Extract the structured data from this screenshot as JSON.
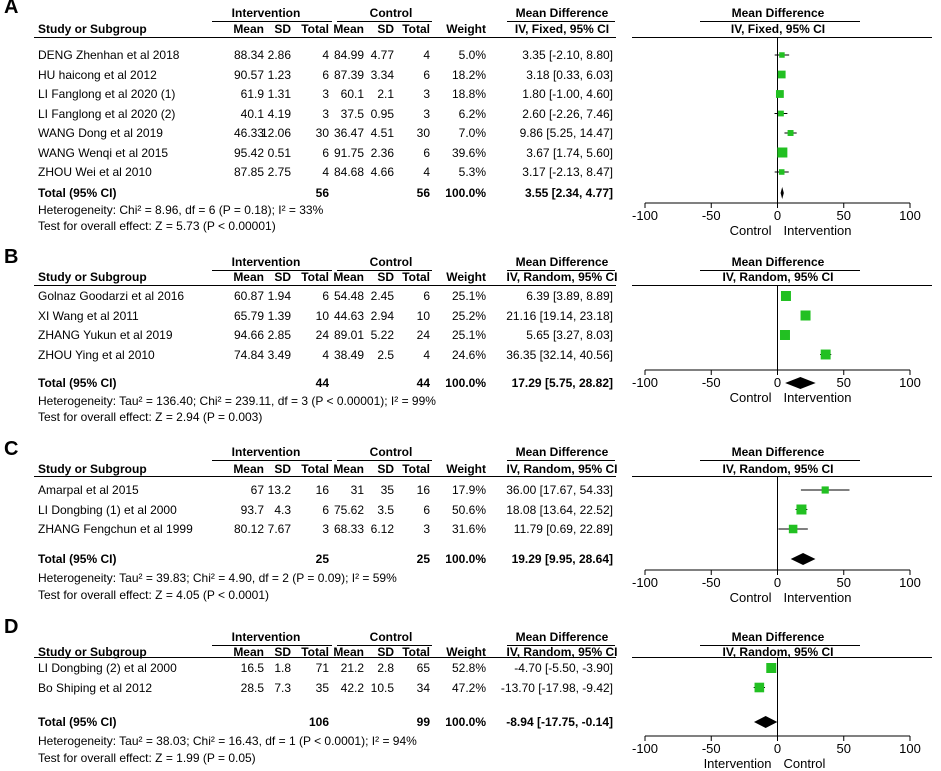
{
  "panels": [
    {
      "letter": "A",
      "model": "Fixed",
      "group_headers": {
        "intervention": "Intervention",
        "control": "Control",
        "md": "Mean Difference",
        "md_plot": "Mean Difference"
      },
      "col_headers": {
        "study": "Study or Subgroup",
        "mean": "Mean",
        "sd": "SD",
        "total": "Total",
        "mean2": "Mean",
        "sd2": "SD",
        "total2": "Total",
        "weight": "Weight",
        "ci": "IV, Fixed, 95% CI",
        "ci_plot": "IV, Fixed, 95% CI"
      },
      "studies": [
        {
          "name": "DENG Zhenhan et al 2018",
          "i_mean": "88.34",
          "i_sd": "2.86",
          "i_n": "4",
          "c_mean": "84.99",
          "c_sd": "4.77",
          "c_n": "4",
          "weight": "5.0%",
          "ci_text": "3.35 [-2.10, 8.80]",
          "md": 3.35,
          "lo": -2.1,
          "hi": 8.8,
          "w": 5.0
        },
        {
          "name": "HU haicong et al 2012",
          "i_mean": "90.57",
          "i_sd": "1.23",
          "i_n": "6",
          "c_mean": "87.39",
          "c_sd": "3.34",
          "c_n": "6",
          "weight": "18.2%",
          "ci_text": "3.18 [0.33, 6.03]",
          "md": 3.18,
          "lo": 0.33,
          "hi": 6.03,
          "w": 18.2
        },
        {
          "name": "LI Fanglong et al 2020 (1)",
          "i_mean": "61.9",
          "i_sd": "1.31",
          "i_n": "3",
          "c_mean": "60.1",
          "c_sd": "2.1",
          "c_n": "3",
          "weight": "18.8%",
          "ci_text": "1.80 [-1.00, 4.60]",
          "md": 1.8,
          "lo": -1.0,
          "hi": 4.6,
          "w": 18.8
        },
        {
          "name": "LI Fanglong et al 2020 (2)",
          "i_mean": "40.1",
          "i_sd": "4.19",
          "i_n": "3",
          "c_mean": "37.5",
          "c_sd": "0.95",
          "c_n": "3",
          "weight": "6.2%",
          "ci_text": "2.60 [-2.26, 7.46]",
          "md": 2.6,
          "lo": -2.26,
          "hi": 7.46,
          "w": 6.2
        },
        {
          "name": "WANG Dong et al 2019",
          "i_mean": "46.33",
          "i_sd": "12.06",
          "i_n": "30",
          "c_mean": "36.47",
          "c_sd": "4.51",
          "c_n": "30",
          "weight": "7.0%",
          "ci_text": "9.86 [5.25, 14.47]",
          "md": 9.86,
          "lo": 5.25,
          "hi": 14.47,
          "w": 7.0
        },
        {
          "name": "WANG Wenqi et al 2015",
          "i_mean": "95.42",
          "i_sd": "0.51",
          "i_n": "6",
          "c_mean": "91.75",
          "c_sd": "2.36",
          "c_n": "6",
          "weight": "39.6%",
          "ci_text": "3.67 [1.74, 5.60]",
          "md": 3.67,
          "lo": 1.74,
          "hi": 5.6,
          "w": 39.6
        },
        {
          "name": "ZHOU Wei et al 2010",
          "i_mean": "87.85",
          "i_sd": "2.75",
          "i_n": "4",
          "c_mean": "84.68",
          "c_sd": "4.66",
          "c_n": "4",
          "weight": "5.3%",
          "ci_text": "3.17 [-2.13, 8.47]",
          "md": 3.17,
          "lo": -2.13,
          "hi": 8.47,
          "w": 5.3
        }
      ],
      "total": {
        "label": "Total (95% CI)",
        "i_n": "56",
        "c_n": "56",
        "weight": "100.0%",
        "ci_text": "3.55 [2.34, 4.77]",
        "md": 3.55,
        "lo": 2.34,
        "hi": 4.77
      },
      "heterogeneity": "Heterogeneity: Chi² = 8.96, df = 6 (P = 0.18); I² = 33%",
      "overall": "Test for overall effect: Z = 5.73 (P < 0.00001)",
      "axis": {
        "ticks": [
          -100,
          -50,
          0,
          50,
          100
        ],
        "tick_labels": [
          "-100",
          "-50",
          "0",
          "50",
          "100"
        ],
        "left_label": "Control",
        "right_label": "Intervention"
      }
    },
    {
      "letter": "B",
      "model": "Random",
      "group_headers": {
        "intervention": "Intervention",
        "control": "Control",
        "md": "Mean Difference",
        "md_plot": "Mean Difference"
      },
      "col_headers": {
        "study": "Study or Subgroup",
        "mean": "Mean",
        "sd": "SD",
        "total": "Total",
        "mean2": "Mean",
        "sd2": "SD",
        "total2": "Total",
        "weight": "Weight",
        "ci": "IV, Random, 95% CI",
        "ci_plot": "IV, Random, 95% CI"
      },
      "studies": [
        {
          "name": "Golnaz Goodarzi et al 2016",
          "i_mean": "60.87",
          "i_sd": "1.94",
          "i_n": "6",
          "c_mean": "54.48",
          "c_sd": "2.45",
          "c_n": "6",
          "weight": "25.1%",
          "ci_text": "6.39 [3.89, 8.89]",
          "md": 6.39,
          "lo": 3.89,
          "hi": 8.89,
          "w": 25.1
        },
        {
          "name": "XI Wang et al 2011",
          "i_mean": "65.79",
          "i_sd": "1.39",
          "i_n": "10",
          "c_mean": "44.63",
          "c_sd": "2.94",
          "c_n": "10",
          "weight": "25.2%",
          "ci_text": "21.16 [19.14, 23.18]",
          "md": 21.16,
          "lo": 19.14,
          "hi": 23.18,
          "w": 25.2
        },
        {
          "name": "ZHANG Yukun et al 2019",
          "i_mean": "94.66",
          "i_sd": "2.85",
          "i_n": "24",
          "c_mean": "89.01",
          "c_sd": "5.22",
          "c_n": "24",
          "weight": "25.1%",
          "ci_text": "5.65 [3.27, 8.03]",
          "md": 5.65,
          "lo": 3.27,
          "hi": 8.03,
          "w": 25.1
        },
        {
          "name": "ZHOU Ying et al 2010",
          "i_mean": "74.84",
          "i_sd": "3.49",
          "i_n": "4",
          "c_mean": "38.49",
          "c_sd": "2.5",
          "c_n": "4",
          "weight": "24.6%",
          "ci_text": "36.35 [32.14, 40.56]",
          "md": 36.35,
          "lo": 32.14,
          "hi": 40.56,
          "w": 24.6
        }
      ],
      "total": {
        "label": "Total (95% CI)",
        "i_n": "44",
        "c_n": "44",
        "weight": "100.0%",
        "ci_text": "17.29 [5.75, 28.82]",
        "md": 17.29,
        "lo": 5.75,
        "hi": 28.82
      },
      "heterogeneity": "Heterogeneity: Tau² = 136.40; Chi² = 239.11, df = 3 (P < 0.00001); I² = 99%",
      "overall": "Test for overall effect: Z = 2.94 (P = 0.003)",
      "axis": {
        "ticks": [
          -100,
          -50,
          0,
          50,
          100
        ],
        "tick_labels": [
          "-100",
          "-50",
          "0",
          "50",
          "100"
        ],
        "left_label": "Control",
        "right_label": "Intervention"
      }
    },
    {
      "letter": "C",
      "model": "Random",
      "group_headers": {
        "intervention": "Intervention",
        "control": "Control",
        "md": "Mean Difference",
        "md_plot": "Mean Difference"
      },
      "col_headers": {
        "study": "Study or Subgroup",
        "mean": "Mean",
        "sd": "SD",
        "total": "Total",
        "mean2": "Mean",
        "sd2": "SD",
        "total2": "Total",
        "weight": "Weight",
        "ci": "IV, Random, 95% CI",
        "ci_plot": "IV, Random, 95% CI"
      },
      "studies": [
        {
          "name": "Amarpal et al 2015",
          "i_mean": "67",
          "i_sd": "13.2",
          "i_n": "16",
          "c_mean": "31",
          "c_sd": "35",
          "c_n": "16",
          "weight": "17.9%",
          "ci_text": "36.00 [17.67, 54.33]",
          "md": 36.0,
          "lo": 17.67,
          "hi": 54.33,
          "w": 17.9
        },
        {
          "name": "LI Dongbing (1) et al 2000",
          "i_mean": "93.7",
          "i_sd": "4.3",
          "i_n": "6",
          "c_mean": "75.62",
          "c_sd": "3.5",
          "c_n": "6",
          "weight": "50.6%",
          "ci_text": "18.08 [13.64, 22.52]",
          "md": 18.08,
          "lo": 13.64,
          "hi": 22.52,
          "w": 50.6
        },
        {
          "name": "ZHANG Fengchun et al 1999",
          "i_mean": "80.12",
          "i_sd": "7.67",
          "i_n": "3",
          "c_mean": "68.33",
          "c_sd": "6.12",
          "c_n": "3",
          "weight": "31.6%",
          "ci_text": "11.79 [0.69, 22.89]",
          "md": 11.79,
          "lo": 0.69,
          "hi": 22.89,
          "w": 31.6
        }
      ],
      "total": {
        "label": "Total (95% CI)",
        "i_n": "25",
        "c_n": "25",
        "weight": "100.0%",
        "ci_text": "19.29 [9.95, 28.64]",
        "md": 19.29,
        "lo": 9.95,
        "hi": 28.64
      },
      "heterogeneity": "Heterogeneity: Tau² = 39.83; Chi² = 4.90, df = 2 (P = 0.09); I² = 59%",
      "overall": "Test for overall effect: Z = 4.05 (P < 0.0001)",
      "axis": {
        "ticks": [
          -100,
          -50,
          0,
          50,
          100
        ],
        "tick_labels": [
          "-100",
          "-50",
          "0",
          "50",
          "100"
        ],
        "left_label": "Control",
        "right_label": "Intervention"
      }
    },
    {
      "letter": "D",
      "model": "Random",
      "group_headers": {
        "intervention": "Intervention",
        "control": "Control",
        "md": "Mean Difference",
        "md_plot": "Mean Difference"
      },
      "col_headers": {
        "study": "Study or Subgroup",
        "mean": "Mean",
        "sd": "SD",
        "total": "Total",
        "mean2": "Mean",
        "sd2": "SD",
        "total2": "Total",
        "weight": "Weight",
        "ci": "IV, Random, 95% CI",
        "ci_plot": "IV, Random, 95% CI"
      },
      "studies": [
        {
          "name": "LI Dongbing (2) et al 2000",
          "i_mean": "16.5",
          "i_sd": "1.8",
          "i_n": "71",
          "c_mean": "21.2",
          "c_sd": "2.8",
          "c_n": "65",
          "weight": "52.8%",
          "ci_text": "-4.70 [-5.50, -3.90]",
          "md": -4.7,
          "lo": -5.5,
          "hi": -3.9,
          "w": 52.8
        },
        {
          "name": "Bo Shiping et al 2012",
          "i_mean": "28.5",
          "i_sd": "7.3",
          "i_n": "35",
          "c_mean": "42.2",
          "c_sd": "10.5",
          "c_n": "34",
          "weight": "47.2%",
          "ci_text": "-13.70 [-17.98, -9.42]",
          "md": -13.7,
          "lo": -17.98,
          "hi": -9.42,
          "w": 47.2
        }
      ],
      "total": {
        "label": "Total (95% CI)",
        "i_n": "106",
        "c_n": "99",
        "weight": "100.0%",
        "ci_text": "-8.94 [-17.75, -0.14]",
        "md": -8.94,
        "lo": -17.75,
        "hi": -0.14
      },
      "heterogeneity": "Heterogeneity: Tau² = 38.03; Chi² = 16.43, df = 1 (P < 0.0001); I² = 94%",
      "overall": "Test for overall effect: Z = 1.99 (P = 0.05)",
      "axis": {
        "ticks": [
          -100,
          -50,
          0,
          50,
          100
        ],
        "tick_labels": [
          "-100",
          "-50",
          "0",
          "50",
          "100"
        ],
        "left_label": "Intervention",
        "right_label": "Control"
      }
    }
  ],
  "colors": {
    "marker": "#22c022",
    "diamond": "#000000",
    "line": "#000000"
  },
  "chart_data": [
    {
      "type": "forest",
      "title": "A",
      "xlim": [
        -100,
        100
      ],
      "series": [
        {
          "name": "Mean Difference (IV, Fixed)",
          "x": [
            3.35,
            3.18,
            1.8,
            2.6,
            9.86,
            3.67,
            3.17
          ],
          "lower": [
            -2.1,
            0.33,
            -1.0,
            -2.26,
            5.25,
            1.74,
            -2.13
          ],
          "upper": [
            8.8,
            6.03,
            4.6,
            7.46,
            14.47,
            5.6,
            8.47
          ]
        }
      ],
      "pooled": {
        "md": 3.55,
        "lo": 2.34,
        "hi": 4.77
      }
    },
    {
      "type": "forest",
      "title": "B",
      "xlim": [
        -100,
        100
      ],
      "series": [
        {
          "name": "Mean Difference (IV, Random)",
          "x": [
            6.39,
            21.16,
            5.65,
            36.35
          ],
          "lower": [
            3.89,
            19.14,
            3.27,
            32.14
          ],
          "upper": [
            8.89,
            23.18,
            8.03,
            40.56
          ]
        }
      ],
      "pooled": {
        "md": 17.29,
        "lo": 5.75,
        "hi": 28.82
      }
    },
    {
      "type": "forest",
      "title": "C",
      "xlim": [
        -100,
        100
      ],
      "series": [
        {
          "name": "Mean Difference (IV, Random)",
          "x": [
            36.0,
            18.08,
            11.79
          ],
          "lower": [
            17.67,
            13.64,
            0.69
          ],
          "upper": [
            54.33,
            22.52,
            22.89
          ]
        }
      ],
      "pooled": {
        "md": 19.29,
        "lo": 9.95,
        "hi": 28.64
      }
    },
    {
      "type": "forest",
      "title": "D",
      "xlim": [
        -100,
        100
      ],
      "series": [
        {
          "name": "Mean Difference (IV, Random)",
          "x": [
            -4.7,
            -13.7
          ],
          "lower": [
            -5.5,
            -17.98
          ],
          "upper": [
            -3.9,
            -9.42
          ]
        }
      ],
      "pooled": {
        "md": -8.94,
        "lo": -17.75,
        "hi": -0.14
      }
    }
  ]
}
